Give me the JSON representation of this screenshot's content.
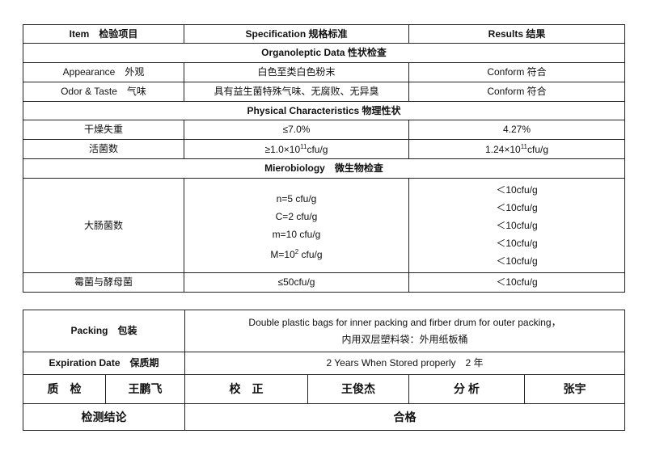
{
  "results_table": {
    "headers": [
      "Item　检验项目",
      "Specification 规格标准",
      "Results  结果"
    ],
    "sections": {
      "organoleptic": "Organoleptic Data 性状检查",
      "physical": "Physical Characteristics 物理性状",
      "micro": "Mierobiology　微生物检查"
    },
    "organoleptic_rows": [
      {
        "item": "Appearance　外观",
        "spec": "白色至类白色粉末",
        "result": "Conform 符合"
      },
      {
        "item": "Odor & Taste　气味",
        "spec": "具有益生菌特殊气味、无腐败、无异臭",
        "result": "Conform 符合"
      }
    ],
    "physical_rows": [
      {
        "item": "干燥失重",
        "spec": "≤7.0%",
        "result": "4.27%"
      }
    ],
    "viable": {
      "item": "活菌数",
      "spec_pre": "≥1.0×10",
      "spec_exp": "11",
      "spec_post": "cfu/g",
      "result_pre": "1.24×10",
      "result_exp": "11",
      "result_post": "cfu/g"
    },
    "coliform": {
      "item": "大肠菌数",
      "spec": [
        "n=5 cfu/g",
        "C=2 cfu/g",
        "m=10 cfu/g"
      ],
      "spec_last_pre": "M=10",
      "spec_last_exp": "2",
      "spec_last_post": " cfu/g",
      "results": [
        "＜10cfu/g",
        "＜10cfu/g",
        "＜10cfu/g",
        "＜10cfu/g",
        "＜10cfu/g"
      ]
    },
    "mold": {
      "item": "霉菌与酵母菌",
      "spec": "≤50cfu/g",
      "result": "＜10cfu/g"
    }
  },
  "info_table": {
    "packing_label": "Packing　包装",
    "packing_value_en": "Double plastic bags for inner packing and firber drum for outer packing，",
    "packing_value_cn": "内用双层塑料袋：外用纸板桶",
    "expiration_label": "Expiration Date　保质期",
    "expiration_value": "2 Years When Stored properly　2 年",
    "signatures": [
      "质　检",
      "王鹏飞",
      "校　正",
      "王俊杰",
      "分 析",
      "张宇"
    ],
    "conclusion_label": "检测结论",
    "conclusion_value": "合格"
  }
}
